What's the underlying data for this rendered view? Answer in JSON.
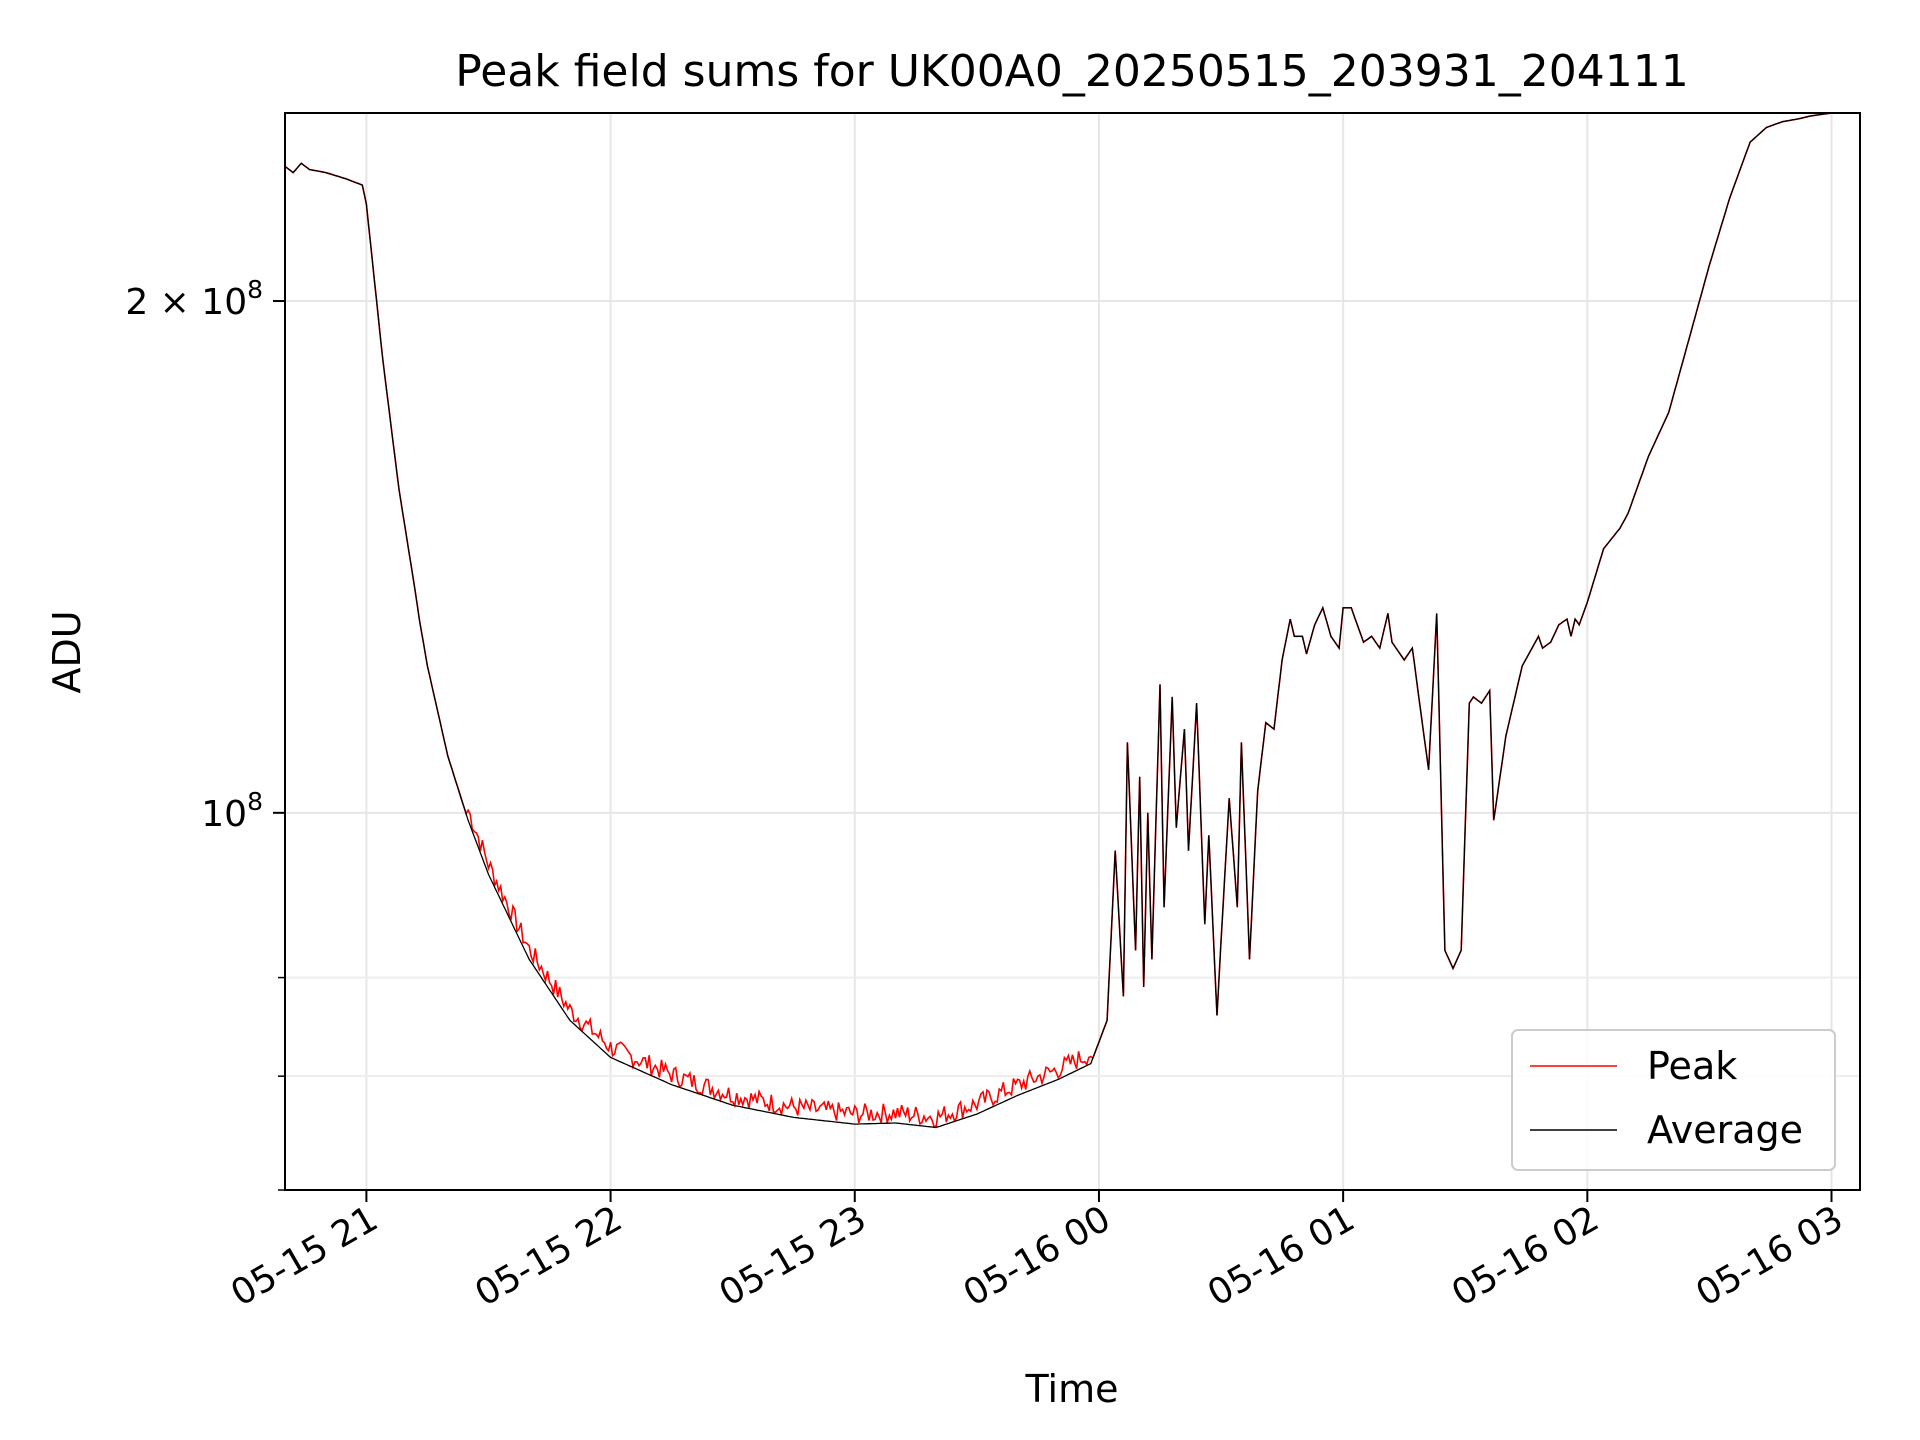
{
  "chart_data": {
    "type": "line",
    "title": "Peak field sums for UK00A0_20250515_203931_204111",
    "xlabel": "Time",
    "ylabel": "ADU",
    "yscale": "log",
    "ylim": [
      60000000,
      258000000
    ],
    "xlim": [
      "2025-05-15 20:40",
      "2025-05-16 03:07"
    ],
    "grid": true,
    "legend_position": "lower right",
    "x_ticks": [
      {
        "t": "2025-05-15 21:00",
        "label": "05-15 21"
      },
      {
        "t": "2025-05-15 22:00",
        "label": "05-15 22"
      },
      {
        "t": "2025-05-15 23:00",
        "label": "05-15 23"
      },
      {
        "t": "2025-05-16 00:00",
        "label": "05-16 00"
      },
      {
        "t": "2025-05-16 01:00",
        "label": "05-16 01"
      },
      {
        "t": "2025-05-16 02:00",
        "label": "05-16 02"
      },
      {
        "t": "2025-05-16 03:00",
        "label": "05-16 03"
      }
    ],
    "y_major_ticks": [
      {
        "value": 100000000,
        "base": "10",
        "exp": "8",
        "mantissa": ""
      },
      {
        "value": 200000000,
        "base": "10",
        "exp": "8",
        "mantissa": "2 × "
      }
    ],
    "y_minor_ticks": [
      60000000,
      70000000,
      80000000
    ],
    "series": [
      {
        "name": "Peak",
        "color": "#ff0000",
        "noise_ranges": [
          [
            "2025-05-15 21:25",
            "2025-05-15 23:58"
          ]
        ]
      },
      {
        "name": "Average",
        "color": "#000000",
        "noise_ranges": []
      }
    ],
    "x": [
      "2025-05-15 20:40",
      "2025-05-15 20:42",
      "2025-05-15 20:44",
      "2025-05-15 20:46",
      "2025-05-15 20:50",
      "2025-05-15 20:55",
      "2025-05-15 20:59",
      "2025-05-15 21:00",
      "2025-05-15 21:04",
      "2025-05-15 21:08",
      "2025-05-15 21:12",
      "2025-05-15 21:13",
      "2025-05-15 21:15",
      "2025-05-15 21:20",
      "2025-05-15 21:25",
      "2025-05-15 21:30",
      "2025-05-15 21:40",
      "2025-05-15 21:50",
      "2025-05-15 22:00",
      "2025-05-15 22:15",
      "2025-05-15 22:30",
      "2025-05-15 22:45",
      "2025-05-15 23:00",
      "2025-05-15 23:10",
      "2025-05-15 23:20",
      "2025-05-15 23:30",
      "2025-05-15 23:40",
      "2025-05-15 23:50",
      "2025-05-15 23:58",
      "2025-05-16 00:02",
      "2025-05-16 00:04",
      "2025-05-16 00:06",
      "2025-05-16 00:07",
      "2025-05-16 00:09",
      "2025-05-16 00:10",
      "2025-05-16 00:11",
      "2025-05-16 00:12",
      "2025-05-16 00:13",
      "2025-05-16 00:15",
      "2025-05-16 00:16",
      "2025-05-16 00:18",
      "2025-05-16 00:19",
      "2025-05-16 00:21",
      "2025-05-16 00:22",
      "2025-05-16 00:24",
      "2025-05-16 00:26",
      "2025-05-16 00:27",
      "2025-05-16 00:29",
      "2025-05-16 00:30",
      "2025-05-16 00:32",
      "2025-05-16 00:34",
      "2025-05-16 00:35",
      "2025-05-16 00:37",
      "2025-05-16 00:39",
      "2025-05-16 00:41",
      "2025-05-16 00:43",
      "2025-05-16 00:45",
      "2025-05-16 00:47",
      "2025-05-16 00:48",
      "2025-05-16 00:50",
      "2025-05-16 00:51",
      "2025-05-16 00:53",
      "2025-05-16 00:55",
      "2025-05-16 00:57",
      "2025-05-16 00:59",
      "2025-05-16 01:00",
      "2025-05-16 01:02",
      "2025-05-16 01:05",
      "2025-05-16 01:07",
      "2025-05-16 01:09",
      "2025-05-16 01:11",
      "2025-05-16 01:12",
      "2025-05-16 01:15",
      "2025-05-16 01:17",
      "2025-05-16 01:19",
      "2025-05-16 01:21",
      "2025-05-16 01:23",
      "2025-05-16 01:25",
      "2025-05-16 01:27",
      "2025-05-16 01:29",
      "2025-05-16 01:31",
      "2025-05-16 01:32",
      "2025-05-16 01:34",
      "2025-05-16 01:36",
      "2025-05-16 01:37",
      "2025-05-16 01:40",
      "2025-05-16 01:44",
      "2025-05-16 01:48",
      "2025-05-16 01:49",
      "2025-05-16 01:51",
      "2025-05-16 01:53",
      "2025-05-16 01:55",
      "2025-05-16 01:56",
      "2025-05-16 01:57",
      "2025-05-16 01:58",
      "2025-05-16 02:00",
      "2025-05-16 02:04",
      "2025-05-16 02:08",
      "2025-05-16 02:10",
      "2025-05-16 02:15",
      "2025-05-16 02:20",
      "2025-05-16 02:25",
      "2025-05-16 02:30",
      "2025-05-16 02:35",
      "2025-05-16 02:40",
      "2025-05-16 02:44",
      "2025-05-16 02:48",
      "2025-05-16 02:52",
      "2025-05-16 02:55",
      "2025-05-16 03:00",
      "2025-05-16 03:07"
    ],
    "y": [
      240000000,
      238000000,
      241000000,
      239000000,
      238000000,
      236000000,
      234000000,
      228000000,
      185000000,
      155000000,
      135000000,
      130000000,
      122000000,
      108000000,
      99000000,
      92000000,
      82000000,
      75500000,
      71800000,
      69200000,
      67300000,
      66200000,
      65600000,
      65700000,
      65300000,
      66500000,
      68200000,
      69700000,
      71200000,
      75500000,
      95000000,
      78000000,
      110000000,
      83000000,
      105000000,
      79000000,
      100000000,
      82000000,
      119000000,
      88000000,
      117000000,
      98000000,
      112000000,
      95000000,
      116000000,
      86000000,
      97000000,
      76000000,
      84000000,
      102000000,
      88000000,
      110000000,
      82000000,
      103000000,
      113000000,
      112000000,
      123000000,
      130000000,
      127000000,
      127000000,
      124000000,
      129000000,
      132000000,
      127000000,
      125000000,
      132000000,
      132000000,
      126000000,
      127000000,
      125000000,
      131000000,
      126000000,
      123000000,
      125000000,
      115000000,
      106000000,
      131000000,
      83000000,
      81000000,
      83000000,
      116000000,
      117000000,
      116000000,
      118000000,
      99000000,
      111000000,
      122000000,
      127000000,
      125000000,
      126000000,
      129000000,
      130000000,
      127000000,
      130000000,
      129000000,
      133000000,
      143000000,
      147000000,
      150000000,
      162000000,
      172000000,
      190000000,
      210000000,
      230000000,
      248000000,
      253000000,
      255000000,
      256000000,
      257000000,
      258000000,
      258000000
    ]
  }
}
